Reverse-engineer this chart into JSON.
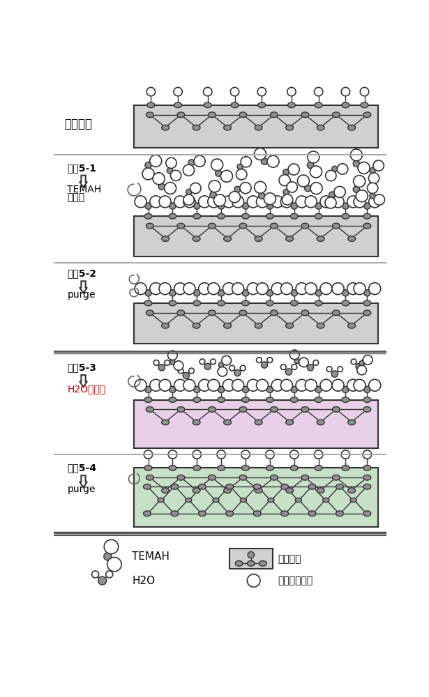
{
  "bg_color": "#ffffff",
  "substrate_color": "#d0d0d0",
  "pink_layer_color": "#e8d0e8",
  "green_layer_color": "#c8e0c8",
  "atom_dark": "#909090",
  "section1_label": "村底表面",
  "step1_label1": "步骤5-1",
  "step1_label2": "TEMAH",
  "step1_label3": "的吸附",
  "step2_label1": "步骤5-2",
  "step2_label2": "purge",
  "step3_label1": "步骤5-3",
  "step3_label2": "H2O的吸附",
  "step3_label_color": "#cc0000",
  "step4_label1": "步骤5-4",
  "step4_label2": "purge",
  "legend_temah": "TEMAH",
  "legend_h2o": "H2O",
  "legend_reaction_site": "反应位置",
  "legend_byproduct": "反应气体产物",
  "separator_color": "#aaaaaa",
  "heavy_sep_color": "#555555"
}
